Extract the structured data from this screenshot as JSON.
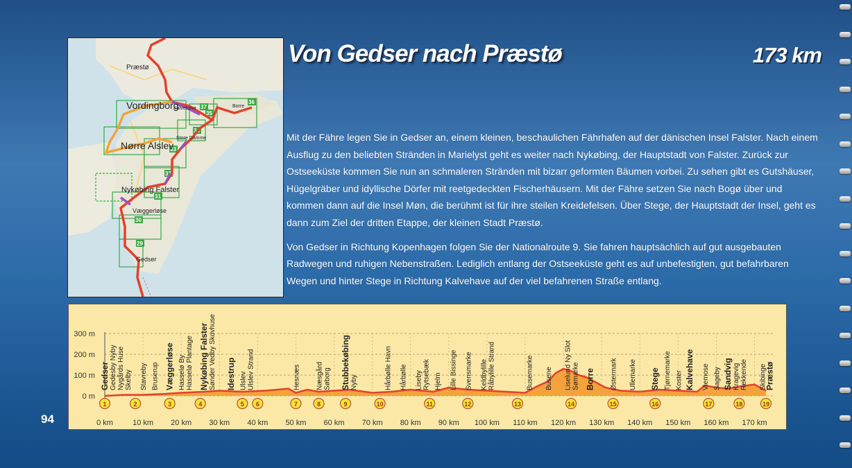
{
  "title": "Von Gedser nach Præstø",
  "distance": "173 km",
  "page_number": "94",
  "paragraphs": [
    "Mit der Fähre legen Sie in Gedser an, einem kleinen, beschaulichen Fährhafen auf der dänischen Insel Falster. Nach einem Ausflug zu den beliebten Stränden in Marielyst geht es weiter nach Nykøbing, der Hauptstadt von Falster. Zurück zur Ostseeküste kommen Sie nun an schmaleren Stränden mit bizarr geformten Bäumen vorbei. Zu sehen gibt es Gutshäuser, Hügelgräber und idyllische Dörfer mit reetgedeckten Fischerhäusern. Mit der Fähre setzen Sie nach Bogø über und kommen dann auf die Insel Møn, die berühmt ist für ihre steilen Kreidefelsen. Über Stege, der Hauptstadt der Insel, geht es dann zum Ziel der dritten Etappe, der kleinen Stadt Præstø.",
    "Von Gedser in Richtung Kopenhagen folgen Sie der Nationalroute 9. Sie fahren hauptsächlich auf gut ausgebauten Radwegen und ruhigen Nebenstraßen. Lediglich entlang der Ostseeküste geht es auf unbefestigten, gut befahrbaren Wegen und hinter Stege in Richtung Kalvehave auf der viel befahrenen Straße entlang."
  ],
  "map": {
    "places": [
      {
        "name": "Præstø",
        "style": "small"
      },
      {
        "name": "Vordingborg",
        "style": "big"
      },
      {
        "name": "Kalvehave",
        "style": "tiny"
      },
      {
        "name": "Borre",
        "style": "tiny"
      },
      {
        "name": "Store Damme",
        "style": "tiny"
      },
      {
        "name": "Nørre Alslev",
        "style": "big"
      },
      {
        "name": "Nykøbing Falster",
        "style": "mid"
      },
      {
        "name": "Væggerløse",
        "style": "small"
      },
      {
        "name": "Gedser",
        "style": "small"
      }
    ],
    "tiles": [
      "29",
      "30",
      "31",
      "32",
      "33",
      "34",
      "35",
      "36",
      "37"
    ],
    "colors": {
      "route": "#e2412b",
      "alt_route": "#f0a43a",
      "variant": "#9b4fc4",
      "tile": "#3aa644"
    }
  },
  "profile": {
    "y_labels": [
      "300 m",
      "200 m",
      "100 m",
      "0 m"
    ],
    "x_labels": [
      "0 km",
      "10 km",
      "20 km",
      "30 km",
      "40 km",
      "50 km",
      "60 km",
      "70 km",
      "80 km",
      "90 km",
      "100 km",
      "110 km",
      "120 km",
      "130 km",
      "140 km",
      "150 km",
      "160 km",
      "170 km"
    ],
    "places": [
      {
        "name": "Gedser",
        "bold": true
      },
      {
        "name": "Gedesby Nyby",
        "bold": false
      },
      {
        "name": "Nygårds Huse",
        "bold": false
      },
      {
        "name": "Skelby",
        "bold": false
      },
      {
        "name": "Stavreby",
        "bold": false
      },
      {
        "name": "Bruserup",
        "bold": false
      },
      {
        "name": "Væggerløse",
        "bold": true
      },
      {
        "name": "Hasselø By",
        "bold": false
      },
      {
        "name": "Hasselø Plantage",
        "bold": false
      },
      {
        "name": "Nykøbing Falster",
        "bold": true
      },
      {
        "name": "Sønder Vedby Skovhuse",
        "bold": false
      },
      {
        "name": "Idestrup",
        "bold": true
      },
      {
        "name": "Ulslev",
        "bold": false
      },
      {
        "name": "Ulslev Strand",
        "bold": false
      },
      {
        "name": "Hesnæs",
        "bold": false
      },
      {
        "name": "Næsgård",
        "bold": false
      },
      {
        "name": "Søborg",
        "bold": false
      },
      {
        "name": "Stubbekøbing",
        "bold": true
      },
      {
        "name": "Nyby",
        "bold": false
      },
      {
        "name": "Hårbølle Havn",
        "bold": false
      },
      {
        "name": "Hårbølle",
        "bold": false
      },
      {
        "name": "Liseby",
        "bold": false
      },
      {
        "name": "Rytsebæk",
        "bold": false
      },
      {
        "name": "Hjelm",
        "bold": false
      },
      {
        "name": "Lille Bissinge",
        "bold": false
      },
      {
        "name": "Svensmarke",
        "bold": false
      },
      {
        "name": "Keldbylille",
        "bold": false
      },
      {
        "name": "Råbylille Strand",
        "bold": false
      },
      {
        "name": "Busemarke",
        "bold": false
      },
      {
        "name": "Busene",
        "bold": false
      },
      {
        "name": "Liselund Ny Slot",
        "bold": false
      },
      {
        "name": "Sømarke",
        "bold": false
      },
      {
        "name": "Borre",
        "bold": true
      },
      {
        "name": "Østermark",
        "bold": false
      },
      {
        "name": "Ullemarke",
        "bold": false
      },
      {
        "name": "Stege",
        "bold": true
      },
      {
        "name": "Tjørnemarke",
        "bold": false
      },
      {
        "name": "Koster",
        "bold": false
      },
      {
        "name": "Kalvehave",
        "bold": true
      },
      {
        "name": "Viemose",
        "bold": false
      },
      {
        "name": "Sageby",
        "bold": false
      },
      {
        "name": "Sandvig",
        "bold": true
      },
      {
        "name": "Kragevig",
        "bold": false
      },
      {
        "name": "Rekkende",
        "bold": false
      },
      {
        "name": "Skibinge",
        "bold": false
      },
      {
        "name": "Præstø",
        "bold": true
      }
    ],
    "waypoints": [
      "1",
      "2",
      "3",
      "4",
      "5",
      "6",
      "7",
      "8",
      "9",
      "10",
      "11",
      "12",
      "13",
      "14",
      "15",
      "16",
      "17",
      "18",
      "19"
    ],
    "colors": {
      "background": "#fbe8a6",
      "fill": "#f4a23c",
      "line": "#e2412b",
      "marker": "#f2e23a"
    }
  },
  "chart_data": {
    "type": "area",
    "title": "",
    "xlabel": "",
    "ylabel": "",
    "x_unit": "km",
    "y_unit": "m",
    "ylim": [
      0,
      300
    ],
    "xlim": [
      0,
      175
    ],
    "elevation": {
      "x": [
        0,
        5,
        10,
        16,
        20,
        26,
        30,
        36,
        42,
        48,
        50,
        53,
        56,
        60,
        64,
        70,
        75,
        80,
        86,
        90,
        95,
        100,
        105,
        110,
        113,
        116,
        118,
        120,
        122,
        124,
        126,
        128,
        131,
        135,
        140,
        145,
        150,
        155,
        157,
        160,
        163,
        166,
        170,
        173
      ],
      "y": [
        0,
        5,
        5,
        10,
        15,
        20,
        25,
        20,
        25,
        35,
        15,
        30,
        20,
        25,
        30,
        15,
        20,
        30,
        20,
        40,
        30,
        25,
        20,
        15,
        45,
        70,
        110,
        130,
        120,
        100,
        90,
        70,
        40,
        25,
        20,
        30,
        25,
        20,
        50,
        40,
        35,
        45,
        55,
        25
      ]
    },
    "waypoints": {
      "labels": [
        "1",
        "2",
        "3",
        "4",
        "5",
        "6",
        "7",
        "8",
        "9",
        "10",
        "11",
        "12",
        "13",
        "14",
        "15",
        "16",
        "17",
        "18",
        "19"
      ],
      "x": [
        0,
        8,
        17,
        25,
        36,
        40,
        50,
        56,
        63,
        72,
        85,
        95,
        108,
        122,
        133,
        144,
        158,
        166,
        173
      ]
    },
    "places_x": [
      0,
      2,
      4,
      6,
      10,
      13,
      17,
      20,
      22,
      26,
      28,
      33,
      36,
      38,
      50,
      56,
      58,
      63,
      65,
      74,
      78,
      82,
      84,
      87,
      91,
      95,
      99,
      101,
      111,
      116,
      121,
      123,
      127,
      133,
      138,
      144,
      147,
      150,
      153,
      157,
      160,
      163,
      165,
      167,
      172,
      174
    ]
  }
}
